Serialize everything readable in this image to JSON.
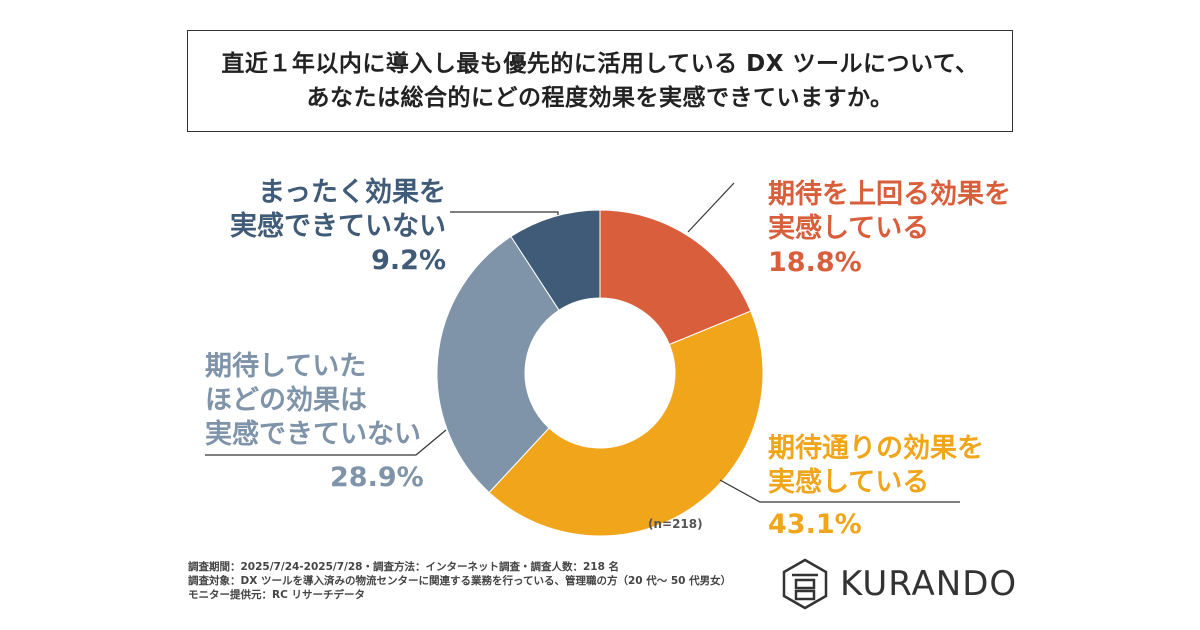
{
  "title": {
    "line1": "直近１年以内に導入し最も優先的に活用している DX ツールについて、",
    "line2": "あなたは総合的にどの程度効果を実感できていますか。"
  },
  "chart_data": {
    "type": "pie",
    "donut": true,
    "n_label": "(n=218)",
    "slices": [
      {
        "label_line1": "期待を上回る効果を",
        "label_line2": "実感している",
        "value": 18.8,
        "value_label": "18.8%",
        "color": "#d95f3c"
      },
      {
        "label_line1": "期待通りの効果を",
        "label_line2": "実感している",
        "value": 43.1,
        "value_label": "43.1%",
        "color": "#f0a51b"
      },
      {
        "label_line1": "期待していた",
        "label_line2": "ほどの効果は",
        "label_line3": "実感できていない",
        "value": 28.9,
        "value_label": "28.9%",
        "color": "#7f93a9"
      },
      {
        "label_line1": "まったく効果を",
        "label_line2": "実感できていない",
        "value": 9.2,
        "value_label": "9.2%",
        "color": "#3f5b78"
      }
    ]
  },
  "footnotes": {
    "line1": "調査期間：2025/7/24-2025/7/28・調査方法：インターネット調査・調査人数：218 名",
    "line2": "調査対象：DX ツールを導入済みの物流センターに関連する業務を行っている、管理職の方（20 代〜 50 代男女）",
    "line3": "モニター提供元：RC リサーチデータ"
  },
  "logo": {
    "text": "KURANDO",
    "icon": "kurando-logo-icon"
  }
}
